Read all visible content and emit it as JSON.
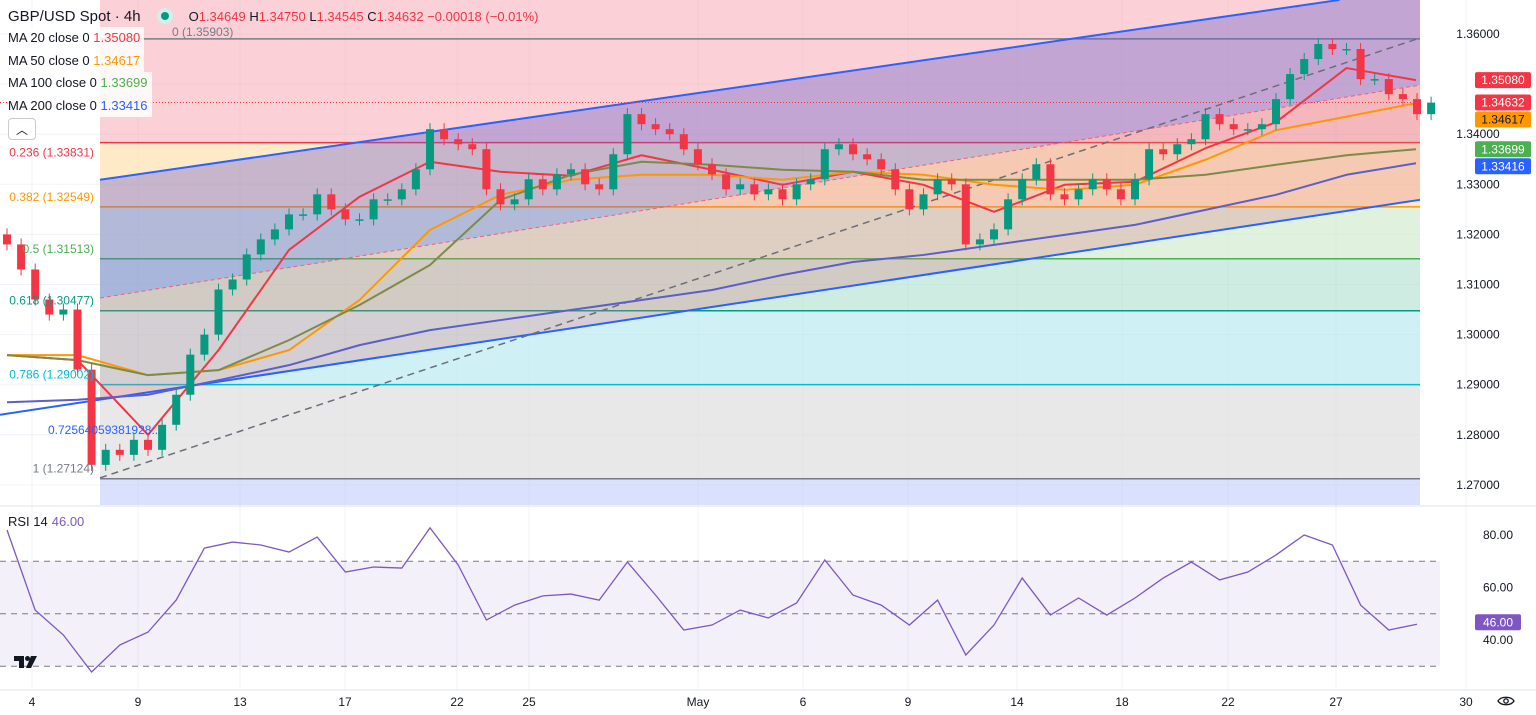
{
  "header": {
    "symbol": "GBP/USD Spot · 4h",
    "ohlc": {
      "o_label": "O",
      "o": "1.34649",
      "h_label": "H",
      "h": "1.34750",
      "l_label": "L",
      "l": "1.34545",
      "c_label": "C",
      "c": "1.34632",
      "change": "−0.00018 (−0.01%)"
    },
    "status_icon": "market-open-dot"
  },
  "moving_averages": [
    {
      "label": "MA 20 close 0",
      "value": "1.35080",
      "color": "#f23645",
      "line": "#f23645"
    },
    {
      "label": "MA 50 close 0",
      "value": "1.34617",
      "color": "#ff9800",
      "line": "#ff9800"
    },
    {
      "label": "MA 100 close 0",
      "value": "1.33699",
      "color": "#4caf50",
      "line": "#7d8b47"
    },
    {
      "label": "MA 200 close 0",
      "value": "1.33416",
      "color": "#2962ff",
      "line": "#5b5fc7"
    }
  ],
  "collapse_icon": "chevron-up-icon",
  "rsi": {
    "label": "RSI 14",
    "value": "46.00",
    "color": "#7e57c2"
  },
  "price_axis_visible": [
    "1.36000",
    "1.34000",
    "1.33000",
    "1.32000",
    "1.31000",
    "1.30000",
    "1.29000",
    "1.28000",
    "1.27000"
  ],
  "price_badges": [
    {
      "value": "1.35080",
      "color": "#f23645"
    },
    {
      "value": "1.34632",
      "color": "#f23645"
    },
    {
      "value": "1.34617",
      "color": "#ff9800"
    },
    {
      "value": "1.33699",
      "color": "#4caf50"
    },
    {
      "value": "1.33416",
      "color": "#2962ff"
    }
  ],
  "rsi_axis": [
    "80.00",
    "60.00",
    "40.00"
  ],
  "time_axis": [
    "4",
    "9",
    "13",
    "17",
    "22",
    "25",
    "May",
    "6",
    "9",
    "14",
    "18",
    "22",
    "27",
    "30"
  ],
  "settings_icon": "eye-icon",
  "logo": "TV",
  "chart_data": {
    "type": "candlestick",
    "ylim": [
      1.2655,
      1.3668
    ],
    "grid": true,
    "colors": {
      "up": "#089981",
      "down": "#f23645"
    },
    "first_open": 1.32,
    "closes": [
      1.318,
      1.313,
      1.307,
      1.304,
      1.305,
      1.293,
      1.274,
      1.277,
      1.276,
      1.279,
      1.277,
      1.282,
      1.288,
      1.296,
      1.3,
      1.309,
      1.311,
      1.316,
      1.319,
      1.321,
      1.324,
      1.324,
      1.328,
      1.325,
      1.323,
      1.323,
      1.327,
      1.327,
      1.329,
      1.333,
      1.341,
      1.339,
      1.338,
      1.337,
      1.329,
      1.326,
      1.327,
      1.331,
      1.329,
      1.332,
      1.333,
      1.33,
      1.329,
      1.336,
      1.344,
      1.342,
      1.341,
      1.34,
      1.337,
      1.334,
      1.332,
      1.329,
      1.33,
      1.328,
      1.329,
      1.327,
      1.33,
      1.331,
      1.337,
      1.338,
      1.336,
      1.335,
      1.333,
      1.329,
      1.325,
      1.328,
      1.331,
      1.33,
      1.318,
      1.319,
      1.321,
      1.327,
      1.331,
      1.334,
      1.328,
      1.327,
      1.329,
      1.331,
      1.329,
      1.327,
      1.331,
      1.337,
      1.336,
      1.338,
      1.339,
      1.344,
      1.342,
      1.341,
      1.341,
      1.342,
      1.347,
      1.352,
      1.355,
      1.358,
      1.357,
      1.357,
      1.351,
      1.351,
      1.348,
      1.347,
      1.344,
      1.3463
    ],
    "ma_step": 5,
    "ma_series": [
      {
        "name": "MA 20",
        "values": [
          1.2959,
          1.2949,
          1.28,
          1.2969,
          1.3169,
          1.3275,
          1.3345,
          1.3325,
          1.3317,
          1.3358,
          1.3329,
          1.3299,
          1.3325,
          1.3299,
          1.3245,
          1.3299,
          1.3305,
          1.3372,
          1.3424,
          1.3532,
          1.3508
        ]
      },
      {
        "name": "MA 50",
        "values": [
          1.2959,
          1.2959,
          1.2919,
          1.2929,
          1.2969,
          1.3069,
          1.3209,
          1.3279,
          1.3309,
          1.3319,
          1.3319,
          1.3309,
          1.3325,
          1.3319,
          1.3299,
          1.3289,
          1.3299,
          1.3349,
          1.3408,
          1.3435,
          1.3462
        ]
      },
      {
        "name": "MA 100",
        "values": [
          1.2959,
          1.2949,
          1.2919,
          1.2929,
          1.2989,
          1.3059,
          1.3139,
          1.3269,
          1.3319,
          1.3345,
          1.3339,
          1.3329,
          1.3325,
          1.3309,
          1.3309,
          1.3309,
          1.3309,
          1.3319,
          1.3339,
          1.3358,
          1.337
        ]
      },
      {
        "name": "MA 200",
        "values": [
          1.2865,
          1.287,
          1.288,
          1.2909,
          1.2939,
          1.2979,
          1.3009,
          1.3029,
          1.3049,
          1.3069,
          1.3089,
          1.3119,
          1.3145,
          1.3159,
          1.3179,
          1.3199,
          1.3219,
          1.3249,
          1.3279,
          1.3319,
          1.3342
        ]
      }
    ],
    "fibonacci": [
      {
        "level": "0",
        "price": 1.35903,
        "label": "0 (1.35903)",
        "color": "#787b86",
        "zone": "#f7a9b4"
      },
      {
        "level": "0.236",
        "price": 1.33831,
        "label": "0.236 (1.33831)",
        "color": "#f23645",
        "zone": "#ffd89a"
      },
      {
        "level": "0.382",
        "price": 1.32549,
        "label": "0.382 (1.32549)",
        "color": "#ff9800",
        "zone": "#c7e8c3"
      },
      {
        "level": "0.5",
        "price": 1.31513,
        "label": "0.5 (1.31513)",
        "color": "#4caf50",
        "zone": "#a6dcc8"
      },
      {
        "level": "0.618",
        "price": 1.30477,
        "label": "0.618 (1.30477)",
        "color": "#089981",
        "zone": "#a8e6ef"
      },
      {
        "level": "0.786",
        "price": 1.29002,
        "label": "0.786 (1.29002)",
        "color": "#00bcd4",
        "zone": "#d6d6d6"
      },
      {
        "level": "1",
        "price": 1.27124,
        "label": "1 (1.27124)",
        "color": "#787b86",
        "zone": "#b9c9fb"
      }
    ],
    "fib_extra_label": {
      "label": "0.72564059381928...",
      "color": "#2962ff"
    },
    "channel": {
      "upper": [
        [
          6.6,
          1.3309
        ],
        [
          94.5,
          1.3668
        ]
      ],
      "middle": [
        [
          6.6,
          1.3073
        ],
        [
          100.2,
          1.3498
        ]
      ],
      "lower": [
        [
          -0.5,
          1.284
        ],
        [
          100.2,
          1.3269
        ]
      ],
      "color": "#2962ff"
    },
    "trend_dashed": [
      [
        6.6,
        1.2714
      ],
      [
        100.2,
        1.3592
      ]
    ],
    "rsi_step": 2,
    "rsi_values": [
      81.9,
      51.4,
      41.9,
      27.8,
      38.1,
      43.0,
      55.2,
      75.0,
      77.3,
      76.2,
      73.5,
      79.2,
      65.9,
      67.8,
      67.4,
      82.7,
      68.6,
      47.6,
      53.3,
      56.8,
      57.5,
      55.2,
      69.7,
      57.1,
      43.8,
      45.7,
      51.4,
      48.4,
      54.1,
      70.5,
      57.1,
      53.3,
      45.7,
      55.2,
      34.3,
      45.7,
      63.6,
      49.5,
      56.0,
      49.5,
      56.0,
      63.6,
      69.7,
      62.9,
      65.9,
      72.4,
      80.0,
      76.2,
      53.3,
      43.8,
      46.0
    ],
    "rsi_bands": [
      70,
      50,
      30
    ],
    "rsi_ylim": [
      20,
      84
    ]
  }
}
